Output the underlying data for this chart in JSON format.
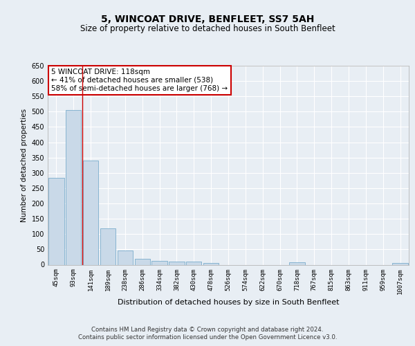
{
  "title1": "5, WINCOAT DRIVE, BENFLEET, SS7 5AH",
  "title2": "Size of property relative to detached houses in South Benfleet",
  "xlabel": "Distribution of detached houses by size in South Benfleet",
  "ylabel": "Number of detached properties",
  "bar_labels": [
    "45sqm",
    "93sqm",
    "141sqm",
    "189sqm",
    "238sqm",
    "286sqm",
    "334sqm",
    "382sqm",
    "430sqm",
    "478sqm",
    "526sqm",
    "574sqm",
    "622sqm",
    "670sqm",
    "718sqm",
    "767sqm",
    "815sqm",
    "863sqm",
    "911sqm",
    "959sqm",
    "1007sqm"
  ],
  "bar_values": [
    283,
    505,
    340,
    118,
    46,
    20,
    12,
    10,
    10,
    5,
    0,
    0,
    0,
    0,
    7,
    0,
    0,
    0,
    0,
    0,
    6
  ],
  "bar_color": "#c9d9e8",
  "bar_edge_color": "#7aadcc",
  "vline_color": "#cc0000",
  "ylim": [
    0,
    650
  ],
  "yticks": [
    0,
    50,
    100,
    150,
    200,
    250,
    300,
    350,
    400,
    450,
    500,
    550,
    600,
    650
  ],
  "annotation_text": "5 WINCOAT DRIVE: 118sqm\n← 41% of detached houses are smaller (538)\n58% of semi-detached houses are larger (768) →",
  "annotation_box_color": "#ffffff",
  "annotation_border_color": "#cc0000",
  "footer": "Contains HM Land Registry data © Crown copyright and database right 2024.\nContains public sector information licensed under the Open Government Licence v3.0.",
  "bg_color": "#e8eef4",
  "plot_bg_color": "#e8eef4",
  "grid_color": "#ffffff",
  "title1_fontsize": 10,
  "title2_fontsize": 8.5,
  "xlabel_fontsize": 8,
  "ylabel_fontsize": 7.5,
  "tick_fontsize": 6.5,
  "annot_fontsize": 7.5,
  "footer_fontsize": 6.2
}
